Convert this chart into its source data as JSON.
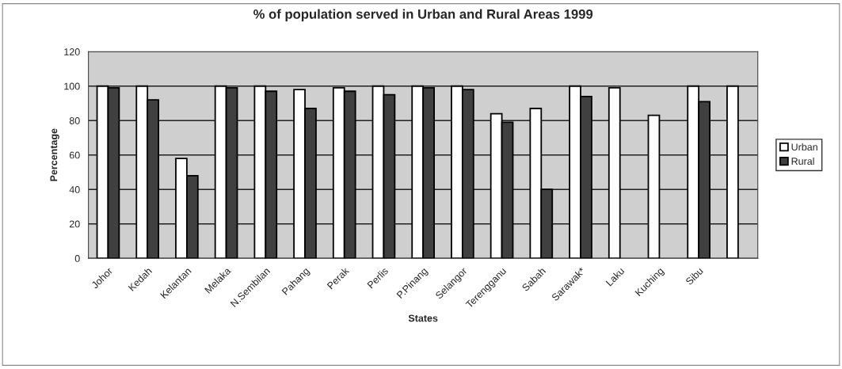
{
  "chart_data": {
    "type": "bar",
    "title": "% of population served in Urban and Rural Areas 1999",
    "xlabel": "States",
    "ylabel": "Percentage",
    "categories": [
      "Johor",
      "Kedah",
      "Kelantan",
      "Melaka",
      "N.Sembilan",
      "Pahang",
      "Perak",
      "Perlis",
      "P.Pinang",
      "Selangor",
      "Terengganu",
      "Sabah",
      "Sarawak*",
      "Laku",
      "Kuching",
      "Sibu",
      null
    ],
    "series": [
      {
        "name": "Urban",
        "color": "#ffffff",
        "values": [
          100,
          100,
          58,
          100,
          100,
          98,
          99,
          100,
          100,
          100,
          84,
          87,
          100,
          99,
          83,
          100,
          100
        ]
      },
      {
        "name": "Rural",
        "color": "#404040",
        "values": [
          99,
          92,
          48,
          99,
          97,
          87,
          97,
          95,
          99,
          98,
          79,
          40,
          94,
          null,
          null,
          91,
          null
        ]
      }
    ],
    "ylim": [
      0,
      120
    ],
    "yticks": [
      0,
      20,
      40,
      60,
      80,
      100,
      120
    ],
    "grid": "y",
    "legend": "right"
  }
}
